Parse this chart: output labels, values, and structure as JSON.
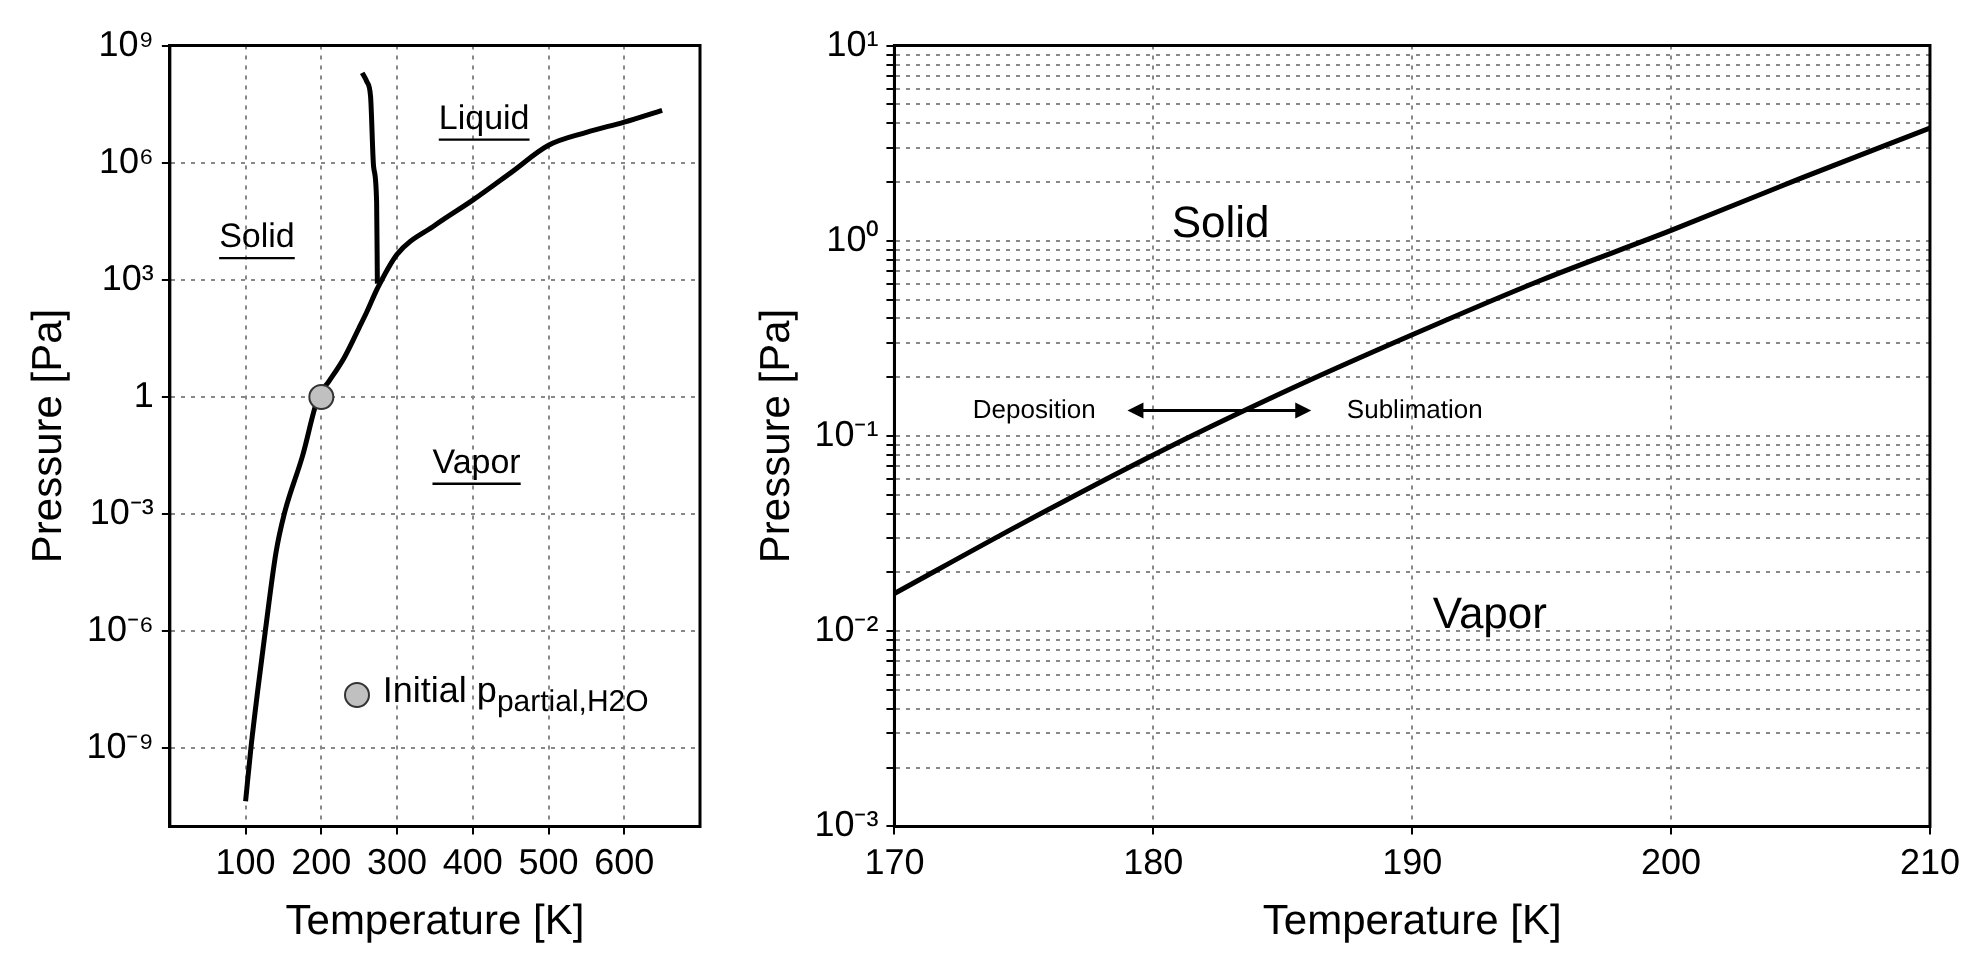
{
  "chart_data": [
    {
      "type": "line",
      "xlabel": "Temperature [K]",
      "ylabel": "Pressure [Pa]",
      "log": "y",
      "grid": true,
      "legend": "bottom right",
      "marker": "none",
      "line_style": "solid",
      "xlim": [
        0,
        700
      ],
      "xticks": [
        100,
        200,
        300,
        400,
        500,
        600
      ],
      "ylim": [
        1e-11,
        1000000000.0
      ],
      "yticks": [
        {
          "value": 1e-09,
          "label": "10⁻⁹"
        },
        {
          "value": 1e-06,
          "label": "10⁻⁶"
        },
        {
          "value": 0.001,
          "label": "10⁻³"
        },
        1,
        {
          "value": 1000.0,
          "label": "10³"
        },
        {
          "value": 1000000.0,
          "label": "10⁶"
        },
        {
          "value": 1000000000.0,
          "label": "10⁹"
        }
      ],
      "annotations": [
        "Solid",
        "Liquid",
        "Vapor"
      ],
      "series": [
        {
          "color": "#000000",
          "x": [
            100,
            107,
            116,
            126,
            140,
            151,
            175,
            196,
            210,
            230,
            250,
            260,
            274,
            300,
            350,
            400,
            450,
            500,
            550,
            600,
            650
          ],
          "values": [
            4.4e-11,
            1e-09,
            3e-08,
            1e-06,
            0.0001,
            0.001,
            0.03,
            1,
            2.5,
            10,
            60,
            150,
            600,
            4500,
            25000.0,
            110000.0,
            550000.0,
            2800000.0,
            6000000.0,
            11000000.0,
            22000000.0
          ]
        },
        {
          "color": "#000000",
          "x": [
            274,
            273,
            269,
            265,
            260,
            254
          ],
          "values": [
            800,
            100000.0,
            800000.0,
            50000000.0,
            120000000.0,
            200000000.0
          ]
        },
        {
          "type": "scatter",
          "name": "Initial p$_{partial,H2O}$",
          "color": "#c0c0c0",
          "marker": "circle",
          "x": [
            200
          ],
          "values": [
            1
          ]
        }
      ]
    },
    {
      "type": "line",
      "xlabel": "Temperature [K]",
      "ylabel": "Pressure [Pa]",
      "log": "y",
      "grid": true,
      "marker": "none",
      "line_style": "solid",
      "xlim": [
        170,
        210
      ],
      "xticks": [
        170,
        180,
        190,
        200,
        210
      ],
      "ylim": [
        0.001,
        10
      ],
      "yticks": [
        {
          "value": 0.001,
          "label": "10⁻³"
        },
        {
          "value": 0.002,
          "label": null
        },
        {
          "value": 0.003,
          "label": null
        },
        {
          "value": 0.004,
          "label": null
        },
        {
          "value": 0.005,
          "label": null
        },
        {
          "value": 0.006,
          "label": null
        },
        {
          "value": 0.007,
          "label": null
        },
        {
          "value": 0.008,
          "label": null
        },
        {
          "value": 0.009,
          "label": null
        },
        {
          "value": 0.01,
          "label": "10⁻²"
        },
        {
          "value": 0.02,
          "label": null
        },
        {
          "value": 0.03,
          "label": null
        },
        {
          "value": 0.04,
          "label": null
        },
        {
          "value": 0.05,
          "label": null
        },
        {
          "value": 0.06,
          "label": null
        },
        {
          "value": 0.07,
          "label": null
        },
        {
          "value": 0.08,
          "label": null
        },
        {
          "value": 0.09,
          "label": null
        },
        {
          "value": 0.1,
          "label": "10⁻¹"
        },
        {
          "value": 0.2,
          "label": null
        },
        {
          "value": 0.3,
          "label": null
        },
        {
          "value": 0.4,
          "label": null
        },
        {
          "value": 0.5,
          "label": null
        },
        {
          "value": 0.6,
          "label": null
        },
        {
          "value": 0.7,
          "label": null
        },
        {
          "value": 0.8,
          "label": null
        },
        {
          "value": 0.9,
          "label": null
        },
        {
          "value": 1,
          "label": "10⁰"
        },
        {
          "value": 2,
          "label": null
        },
        {
          "value": 3,
          "label": null
        },
        {
          "value": 4,
          "label": null
        },
        {
          "value": 5,
          "label": null
        },
        {
          "value": 6,
          "label": null
        },
        {
          "value": 7,
          "label": null
        },
        {
          "value": 8,
          "label": null
        },
        {
          "value": 9,
          "label": null
        },
        {
          "value": 10,
          "label": "10¹"
        }
      ],
      "annotations": [
        "Solid",
        "Vapor",
        "Deposition",
        "Sublimation"
      ],
      "series": [
        {
          "color": "#000000",
          "x": [
            170,
            175,
            180,
            185,
            190,
            195,
            200,
            205,
            210
          ],
          "values": [
            0.0156,
            0.036,
            0.08,
            0.167,
            0.33,
            0.63,
            1.13,
            2.09,
            3.78
          ]
        }
      ]
    }
  ]
}
